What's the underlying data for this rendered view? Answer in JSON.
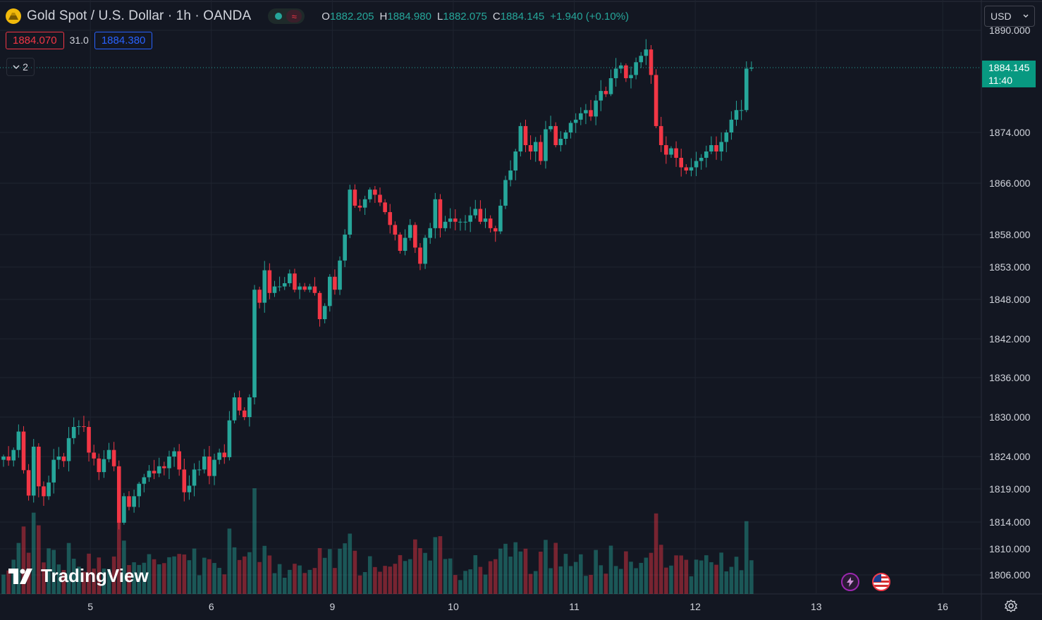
{
  "header": {
    "title": "Gold Spot / U.S. Dollar · 1h · OANDA",
    "wave_symbol": "≈",
    "ohlc": [
      {
        "k": "O",
        "v": "1882.205"
      },
      {
        "k": "H",
        "v": "1884.980"
      },
      {
        "k": "L",
        "v": "1882.075"
      },
      {
        "k": "C",
        "v": "1884.145"
      },
      {
        "k": "",
        "v": "+1.940 (+0.10%)"
      }
    ]
  },
  "quote": {
    "bid": "1884.070",
    "spread": "31.0",
    "ask": "1884.380"
  },
  "indicators_count": "2",
  "currency_button": "USD",
  "current_price_tag": {
    "price": "1884.145",
    "countdown": "11:40"
  },
  "brand": "TradingView",
  "colors": {
    "up": "#26a69a",
    "down": "#f23645",
    "bg": "#131722",
    "grid": "#1f2430",
    "text": "#d1d4dc"
  },
  "icons": {
    "event_1": "lightning-icon",
    "event_2": "us-flag-icon",
    "settings": "gear-icon"
  },
  "chart_data": {
    "type": "candlestick",
    "y_scale": "log",
    "price_ticks": [
      "1890.000",
      "1874.000",
      "1866.000",
      "1858.000",
      "1853.000",
      "1848.000",
      "1842.000",
      "1836.000",
      "1830.000",
      "1824.000",
      "1819.000",
      "1814.000",
      "1810.000",
      "1806.000"
    ],
    "date_ticks": [
      {
        "label": "5",
        "t": 17.3
      },
      {
        "label": "6",
        "t": 41.4
      },
      {
        "label": "9",
        "t": 65.5
      },
      {
        "label": "10",
        "t": 89.6
      },
      {
        "label": "11",
        "t": 113.7
      },
      {
        "label": "12",
        "t": 137.8
      },
      {
        "label": "13",
        "t": 161.9
      },
      {
        "label": "16",
        "t": 187.1
      }
    ],
    "ohlc_close": [
      1824.0,
      1823.4,
      1825.0,
      1827.8,
      1821.9,
      1818.0,
      1825.5,
      1819.4,
      1817.9,
      1820.0,
      1823.5,
      1824.0,
      1823.3,
      1826.8,
      1828.5,
      1828.6,
      1828.5,
      1824.6,
      1823.7,
      1821.6,
      1823.6,
      1825.0,
      1822.5,
      1813.9,
      1817.9,
      1816.3,
      1817.9,
      1819.8,
      1820.8,
      1821.8,
      1821.4,
      1822.5,
      1822.2,
      1824.0,
      1824.8,
      1822.0,
      1818.5,
      1819.5,
      1822.0,
      1822.0,
      1824.0,
      1821.0,
      1823.5,
      1824.6,
      1823.9,
      1829.5,
      1833.0,
      1831.0,
      1830.0,
      1833.0,
      1849.5,
      1847.5,
      1852.5,
      1849.0,
      1850.0,
      1850.0,
      1850.5,
      1852.0,
      1849.5,
      1850.0,
      1849.5,
      1850.0,
      1849.0,
      1845.0,
      1847.0,
      1851.5,
      1849.5,
      1854.0,
      1858.0,
      1865.0,
      1862.5,
      1862.2,
      1863.5,
      1865.0,
      1864.2,
      1863.0,
      1861.5,
      1859.5,
      1858.0,
      1855.5,
      1857.5,
      1859.5,
      1856.0,
      1853.5,
      1857.5,
      1859.0,
      1863.5,
      1859.0,
      1860.0,
      1860.5,
      1860.0,
      1860.0,
      1860.0,
      1861.0,
      1862.0,
      1860.0,
      1860.5,
      1859.0,
      1858.5,
      1862.5,
      1866.5,
      1868.0,
      1871.0,
      1875.0,
      1872.0,
      1871.0,
      1872.5,
      1869.5,
      1874.5,
      1875.0,
      1872.0,
      1873.0,
      1874.0,
      1875.5,
      1876.0,
      1877.0,
      1877.5,
      1876.5,
      1879.0,
      1880.5,
      1880.0,
      1882.5,
      1884.0,
      1884.5,
      1882.5,
      1883.0,
      1885.0,
      1886.0,
      1887.0,
      1883.0,
      1875.0,
      1872.0,
      1870.5,
      1871.5,
      1870.0,
      1868.5,
      1868.0,
      1868.5,
      1869.5,
      1870.0,
      1871.0,
      1872.0,
      1871.0,
      1872.5,
      1874.0,
      1876.0,
      1877.5,
      1877.5,
      1884.0,
      1884.145
    ],
    "volume_scale": "relative",
    "volume_max_label": ""
  }
}
